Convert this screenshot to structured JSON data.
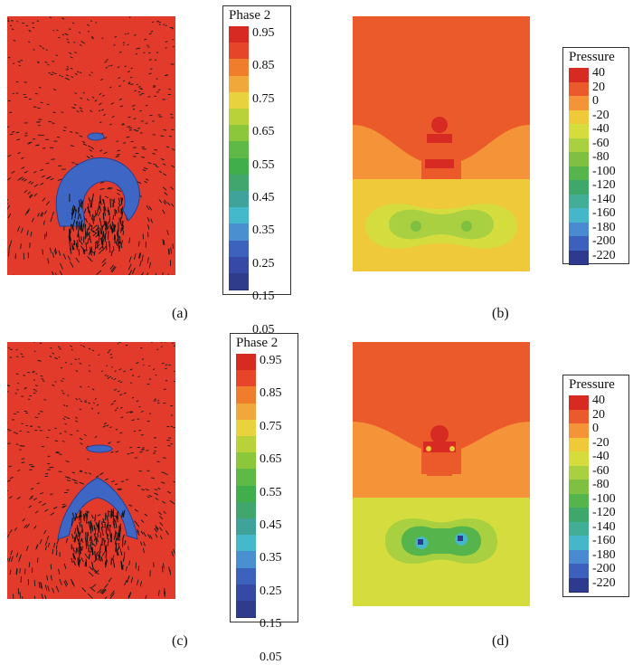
{
  "captions": [
    "(a)",
    "(b)",
    "(c)",
    "(d)"
  ],
  "phase_legend": {
    "title": "Phase 2",
    "labels": [
      "0.95",
      "0.85",
      "0.75",
      "0.65",
      "0.55",
      "0.45",
      "0.35",
      "0.25",
      "0.15",
      "0.05"
    ]
  },
  "pressure_legend": {
    "title": "Pressure",
    "labels": [
      "40",
      "20",
      "0",
      "-20",
      "-40",
      "-60",
      "-80",
      "-100",
      "-120",
      "-140",
      "-160",
      "-180",
      "-200",
      "-220"
    ]
  },
  "colors": {
    "phase_scale": [
      "#d72a22",
      "#e6452a",
      "#ef7d2b",
      "#f0a83a",
      "#e8d23e",
      "#b9d23a",
      "#8cc63a",
      "#5eb947",
      "#3fae4b",
      "#40a66d",
      "#3fa39b",
      "#45b9cc",
      "#4a8fd0",
      "#3d62bd",
      "#364aa5",
      "#2f3c8c"
    ],
    "pressure_scale": [
      "#d72a22",
      "#ea5a2a",
      "#f49338",
      "#efc93a",
      "#d4dc3e",
      "#a8d040",
      "#7fc042",
      "#55b44b",
      "#3ea86a",
      "#43ae98",
      "#46b7c8",
      "#4a8ad0",
      "#3d5fbd",
      "#2d3a8e"
    ],
    "field_red": "#e23b2c",
    "bubble_blue": "#3e66c4"
  }
}
